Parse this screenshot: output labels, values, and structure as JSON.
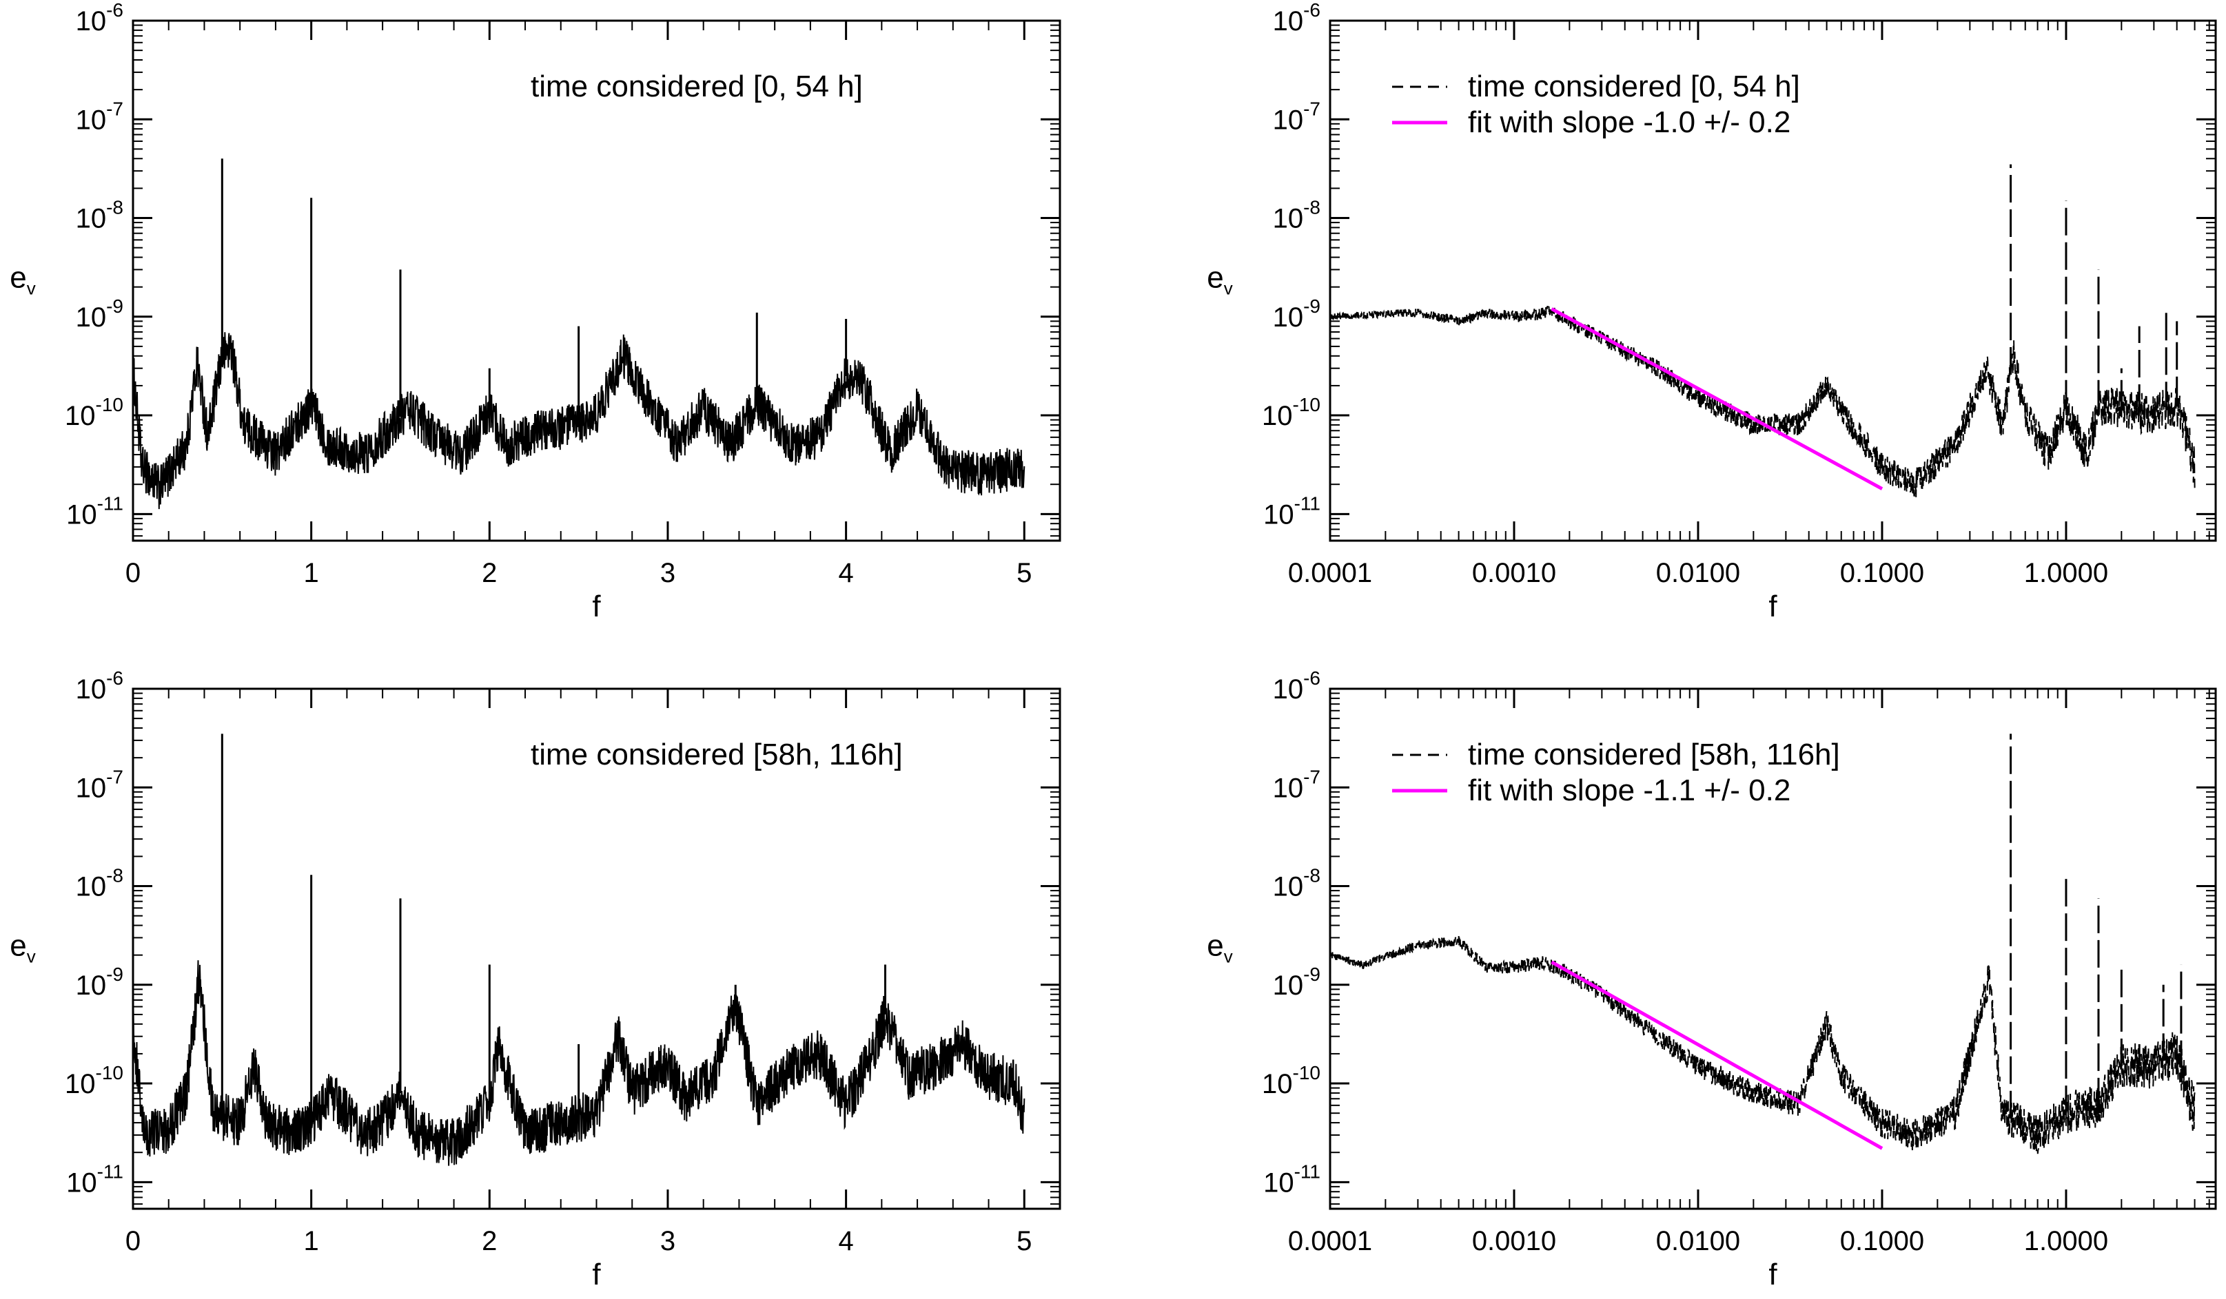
{
  "chart_data": [
    {
      "id": "top-left",
      "type": "line",
      "xscale": "linear",
      "xlim": [
        0,
        5.2
      ],
      "ylim": [
        1e-11,
        1e-06
      ],
      "yscale": "log",
      "xticks": [
        0,
        1,
        2,
        3,
        4,
        5
      ],
      "xtick_labels": [
        "0",
        "1",
        "2",
        "3",
        "4",
        "5"
      ],
      "ytick_labels": [
        {
          "base": "10",
          "exp": "-6"
        },
        {
          "base": "10",
          "exp": "-7"
        },
        {
          "base": "10",
          "exp": "-8"
        },
        {
          "base": "10",
          "exp": "-9"
        },
        {
          "base": "10",
          "exp": "-10"
        },
        {
          "base": "10",
          "exp": "-11"
        }
      ],
      "xlabel": "f",
      "ylabel": {
        "main": "e",
        "sub": "v"
      },
      "legend": [
        {
          "text": "time considered [0, 54 h]",
          "style": "none"
        }
      ],
      "series": [
        {
          "name": "spectrum",
          "style": "solid",
          "color": "#000000",
          "baseline": [
            [
              0,
              3e-10
            ],
            [
              0.05,
              3e-11
            ],
            [
              0.15,
              1.8e-11
            ],
            [
              0.3,
              5e-11
            ],
            [
              0.36,
              3.5e-10
            ],
            [
              0.42,
              6e-11
            ],
            [
              0.5,
              4e-10
            ],
            [
              0.55,
              5e-10
            ],
            [
              0.62,
              8e-11
            ],
            [
              0.8,
              4e-11
            ],
            [
              1.0,
              1.3e-10
            ],
            [
              1.1,
              5e-11
            ],
            [
              1.3,
              4e-11
            ],
            [
              1.55,
              1.2e-10
            ],
            [
              1.7,
              6e-11
            ],
            [
              1.85,
              4e-11
            ],
            [
              2.0,
              1.1e-10
            ],
            [
              2.1,
              5e-11
            ],
            [
              2.3,
              7e-11
            ],
            [
              2.5,
              8e-11
            ],
            [
              2.6,
              1e-10
            ],
            [
              2.75,
              4e-10
            ],
            [
              2.9,
              1.3e-10
            ],
            [
              3.05,
              5e-11
            ],
            [
              3.2,
              1.2e-10
            ],
            [
              3.35,
              5e-11
            ],
            [
              3.5,
              1.3e-10
            ],
            [
              3.7,
              5e-11
            ],
            [
              3.85,
              6e-11
            ],
            [
              4.0,
              2.5e-10
            ],
            [
              4.1,
              2e-10
            ],
            [
              4.25,
              4e-11
            ],
            [
              4.4,
              1.2e-10
            ],
            [
              4.55,
              3e-11
            ],
            [
              4.75,
              2.5e-11
            ],
            [
              5.0,
              3e-11
            ]
          ],
          "spikes": [
            [
              0.5,
              4e-08
            ],
            [
              1.0,
              1.6e-08
            ],
            [
              1.5,
              3e-09
            ],
            [
              2.0,
              3e-10
            ],
            [
              2.5,
              8e-10
            ],
            [
              3.5,
              1.1e-09
            ],
            [
              4.0,
              9.5e-10
            ]
          ],
          "noise_decades": 0.45
        }
      ]
    },
    {
      "id": "top-right",
      "type": "line",
      "xscale": "log",
      "xlim": [
        0.0001,
        6.5
      ],
      "ylim": [
        1e-11,
        1e-06
      ],
      "yscale": "log",
      "xticks": [
        0.0001,
        0.001,
        0.01,
        0.1,
        1.0
      ],
      "xtick_labels": [
        "0.0001",
        "0.0010",
        "0.0100",
        "0.1000",
        "1.0000"
      ],
      "ytick_labels": [
        {
          "base": "10",
          "exp": "-6"
        },
        {
          "base": "10",
          "exp": "-7"
        },
        {
          "base": "10",
          "exp": "-8"
        },
        {
          "base": "10",
          "exp": "-9"
        },
        {
          "base": "10",
          "exp": "-10"
        },
        {
          "base": "10",
          "exp": "-11"
        }
      ],
      "xlabel": "f",
      "ylabel": {
        "main": "e",
        "sub": "v"
      },
      "legend": [
        {
          "text": "time considered [0, 54 h]",
          "style": "dashed",
          "color": "#000000"
        },
        {
          "text": "fit with slope -1.0 +/- 0.2",
          "style": "solid",
          "color": "#ff00ff"
        }
      ],
      "series": [
        {
          "name": "spectrum",
          "style": "dashed",
          "color": "#000000",
          "baseline": [
            [
              0.0001,
              1e-09
            ],
            [
              0.0003,
              1.1e-09
            ],
            [
              0.0005,
              9e-10
            ],
            [
              0.0007,
              1.1e-09
            ],
            [
              0.001,
              1e-09
            ],
            [
              0.0016,
              1.1e-09
            ],
            [
              0.003,
              6e-10
            ],
            [
              0.006,
              3e-10
            ],
            [
              0.01,
              1.5e-10
            ],
            [
              0.02,
              8e-11
            ],
            [
              0.035,
              8e-11
            ],
            [
              0.05,
              2e-10
            ],
            [
              0.065,
              9e-11
            ],
            [
              0.1,
              3e-11
            ],
            [
              0.15,
              2e-11
            ],
            [
              0.25,
              5e-11
            ],
            [
              0.37,
              3e-10
            ],
            [
              0.45,
              8e-11
            ],
            [
              0.52,
              4e-10
            ],
            [
              0.6,
              1e-10
            ],
            [
              0.8,
              4e-11
            ],
            [
              1.0,
              1.2e-10
            ],
            [
              1.3,
              4e-11
            ],
            [
              1.5,
              1.2e-10
            ],
            [
              2.0,
              1.2e-10
            ],
            [
              3.0,
              1e-10
            ],
            [
              4.0,
              1.3e-10
            ],
            [
              5.0,
              3e-11
            ]
          ],
          "spikes": [
            [
              0.5,
              3.5e-08
            ],
            [
              1.0,
              1.5e-08
            ],
            [
              1.5,
              3e-09
            ],
            [
              2.0,
              3e-10
            ],
            [
              2.5,
              8e-10
            ],
            [
              3.5,
              1.1e-09
            ],
            [
              4.0,
              9e-10
            ]
          ],
          "noise_decades": 0.45
        },
        {
          "name": "fit",
          "style": "solid",
          "color": "#ff00ff",
          "points": [
            [
              0.0016,
              1.2e-09
            ],
            [
              0.1,
              1.8e-11
            ]
          ]
        }
      ]
    },
    {
      "id": "bottom-left",
      "type": "line",
      "xscale": "linear",
      "xlim": [
        0,
        5.2
      ],
      "ylim": [
        1e-11,
        1e-06
      ],
      "yscale": "log",
      "xticks": [
        0,
        1,
        2,
        3,
        4,
        5
      ],
      "xtick_labels": [
        "0",
        "1",
        "2",
        "3",
        "4",
        "5"
      ],
      "ytick_labels": [
        {
          "base": "10",
          "exp": "-6"
        },
        {
          "base": "10",
          "exp": "-7"
        },
        {
          "base": "10",
          "exp": "-8"
        },
        {
          "base": "10",
          "exp": "-9"
        },
        {
          "base": "10",
          "exp": "-10"
        },
        {
          "base": "10",
          "exp": "-11"
        }
      ],
      "xlabel": "f",
      "ylabel": {
        "main": "e",
        "sub": "v"
      },
      "legend": [
        {
          "text": "time considered [58h, 116h]",
          "style": "none"
        }
      ],
      "series": [
        {
          "name": "spectrum",
          "style": "solid",
          "color": "#000000",
          "baseline": [
            [
              0,
              4e-10
            ],
            [
              0.06,
              3e-11
            ],
            [
              0.2,
              3.5e-11
            ],
            [
              0.3,
              8e-11
            ],
            [
              0.37,
              1.2e-09
            ],
            [
              0.45,
              5e-11
            ],
            [
              0.6,
              4e-11
            ],
            [
              0.68,
              1.5e-10
            ],
            [
              0.75,
              4e-11
            ],
            [
              0.9,
              3e-11
            ],
            [
              1.05,
              5e-11
            ],
            [
              1.1,
              8e-11
            ],
            [
              1.3,
              3e-11
            ],
            [
              1.4,
              4e-11
            ],
            [
              1.5,
              8e-11
            ],
            [
              1.6,
              3e-11
            ],
            [
              1.8,
              2.5e-11
            ],
            [
              2.0,
              6e-11
            ],
            [
              2.05,
              2.5e-10
            ],
            [
              2.2,
              3e-11
            ],
            [
              2.4,
              4e-11
            ],
            [
              2.6,
              5e-11
            ],
            [
              2.72,
              3e-10
            ],
            [
              2.8,
              8e-11
            ],
            [
              2.9,
              1.2e-10
            ],
            [
              3.0,
              1.5e-10
            ],
            [
              3.1,
              7e-11
            ],
            [
              3.25,
              1.1e-10
            ],
            [
              3.38,
              6e-10
            ],
            [
              3.5,
              6e-11
            ],
            [
              3.7,
              1.5e-10
            ],
            [
              3.85,
              2e-10
            ],
            [
              4.0,
              6e-11
            ],
            [
              4.15,
              2e-10
            ],
            [
              4.22,
              5e-10
            ],
            [
              4.35,
              1.2e-10
            ],
            [
              4.5,
              1.5e-10
            ],
            [
              4.65,
              2.5e-10
            ],
            [
              4.8,
              1.2e-10
            ],
            [
              4.95,
              1e-10
            ],
            [
              5.0,
              4e-11
            ]
          ],
          "spikes": [
            [
              0.5,
              3.5e-07
            ],
            [
              1.0,
              1.3e-08
            ],
            [
              1.5,
              7.5e-09
            ],
            [
              2.0,
              1.6e-09
            ],
            [
              2.5,
              2.5e-10
            ],
            [
              3.38,
              1e-09
            ],
            [
              4.22,
              1.6e-09
            ]
          ],
          "noise_decades": 0.5
        }
      ]
    },
    {
      "id": "bottom-right",
      "type": "line",
      "xscale": "log",
      "xlim": [
        0.0001,
        6.5
      ],
      "ylim": [
        1e-11,
        1e-06
      ],
      "yscale": "log",
      "xticks": [
        0.0001,
        0.001,
        0.01,
        0.1,
        1.0
      ],
      "xtick_labels": [
        "0.0001",
        "0.0010",
        "0.0100",
        "0.1000",
        "1.0000"
      ],
      "ytick_labels": [
        {
          "base": "10",
          "exp": "-6"
        },
        {
          "base": "10",
          "exp": "-7"
        },
        {
          "base": "10",
          "exp": "-8"
        },
        {
          "base": "10",
          "exp": "-9"
        },
        {
          "base": "10",
          "exp": "-10"
        },
        {
          "base": "10",
          "exp": "-11"
        }
      ],
      "xlabel": "f",
      "ylabel": {
        "main": "e",
        "sub": "v"
      },
      "legend": [
        {
          "text": "time considered [58h, 116h]",
          "style": "dashed",
          "color": "#000000"
        },
        {
          "text": "fit with slope -1.1 +/- 0.2",
          "style": "solid",
          "color": "#ff00ff"
        }
      ],
      "series": [
        {
          "name": "spectrum",
          "style": "dashed",
          "color": "#000000",
          "baseline": [
            [
              0.0001,
              2e-09
            ],
            [
              0.00015,
              1.6e-09
            ],
            [
              0.0003,
              2.5e-09
            ],
            [
              0.0005,
              2.8e-09
            ],
            [
              0.0007,
              1.5e-09
            ],
            [
              0.001,
              1.5e-09
            ],
            [
              0.0014,
              1.7e-09
            ],
            [
              0.002,
              1.3e-09
            ],
            [
              0.003,
              8e-10
            ],
            [
              0.006,
              3e-10
            ],
            [
              0.01,
              1.5e-10
            ],
            [
              0.02,
              8e-11
            ],
            [
              0.035,
              6e-11
            ],
            [
              0.05,
              4e-10
            ],
            [
              0.06,
              1.2e-10
            ],
            [
              0.1,
              4e-11
            ],
            [
              0.15,
              3e-11
            ],
            [
              0.25,
              5e-11
            ],
            [
              0.38,
              1.2e-09
            ],
            [
              0.45,
              5e-11
            ],
            [
              0.7,
              3e-11
            ],
            [
              1.0,
              5e-11
            ],
            [
              1.5,
              6e-11
            ],
            [
              2.0,
              1.5e-10
            ],
            [
              3.0,
              1.5e-10
            ],
            [
              4.0,
              2e-10
            ],
            [
              5.0,
              5e-11
            ]
          ],
          "spikes": [
            [
              0.5,
              3.5e-07
            ],
            [
              1.0,
              1.3e-08
            ],
            [
              1.5,
              7.5e-09
            ],
            [
              2.0,
              1.6e-09
            ],
            [
              2.5,
              2.5e-10
            ],
            [
              3.38,
              1e-09
            ],
            [
              4.22,
              1.6e-09
            ]
          ],
          "noise_decades": 0.5
        },
        {
          "name": "fit",
          "style": "solid",
          "color": "#ff00ff",
          "points": [
            [
              0.0016,
              1.7e-09
            ],
            [
              0.1,
              2.2e-11
            ]
          ]
        }
      ]
    }
  ]
}
